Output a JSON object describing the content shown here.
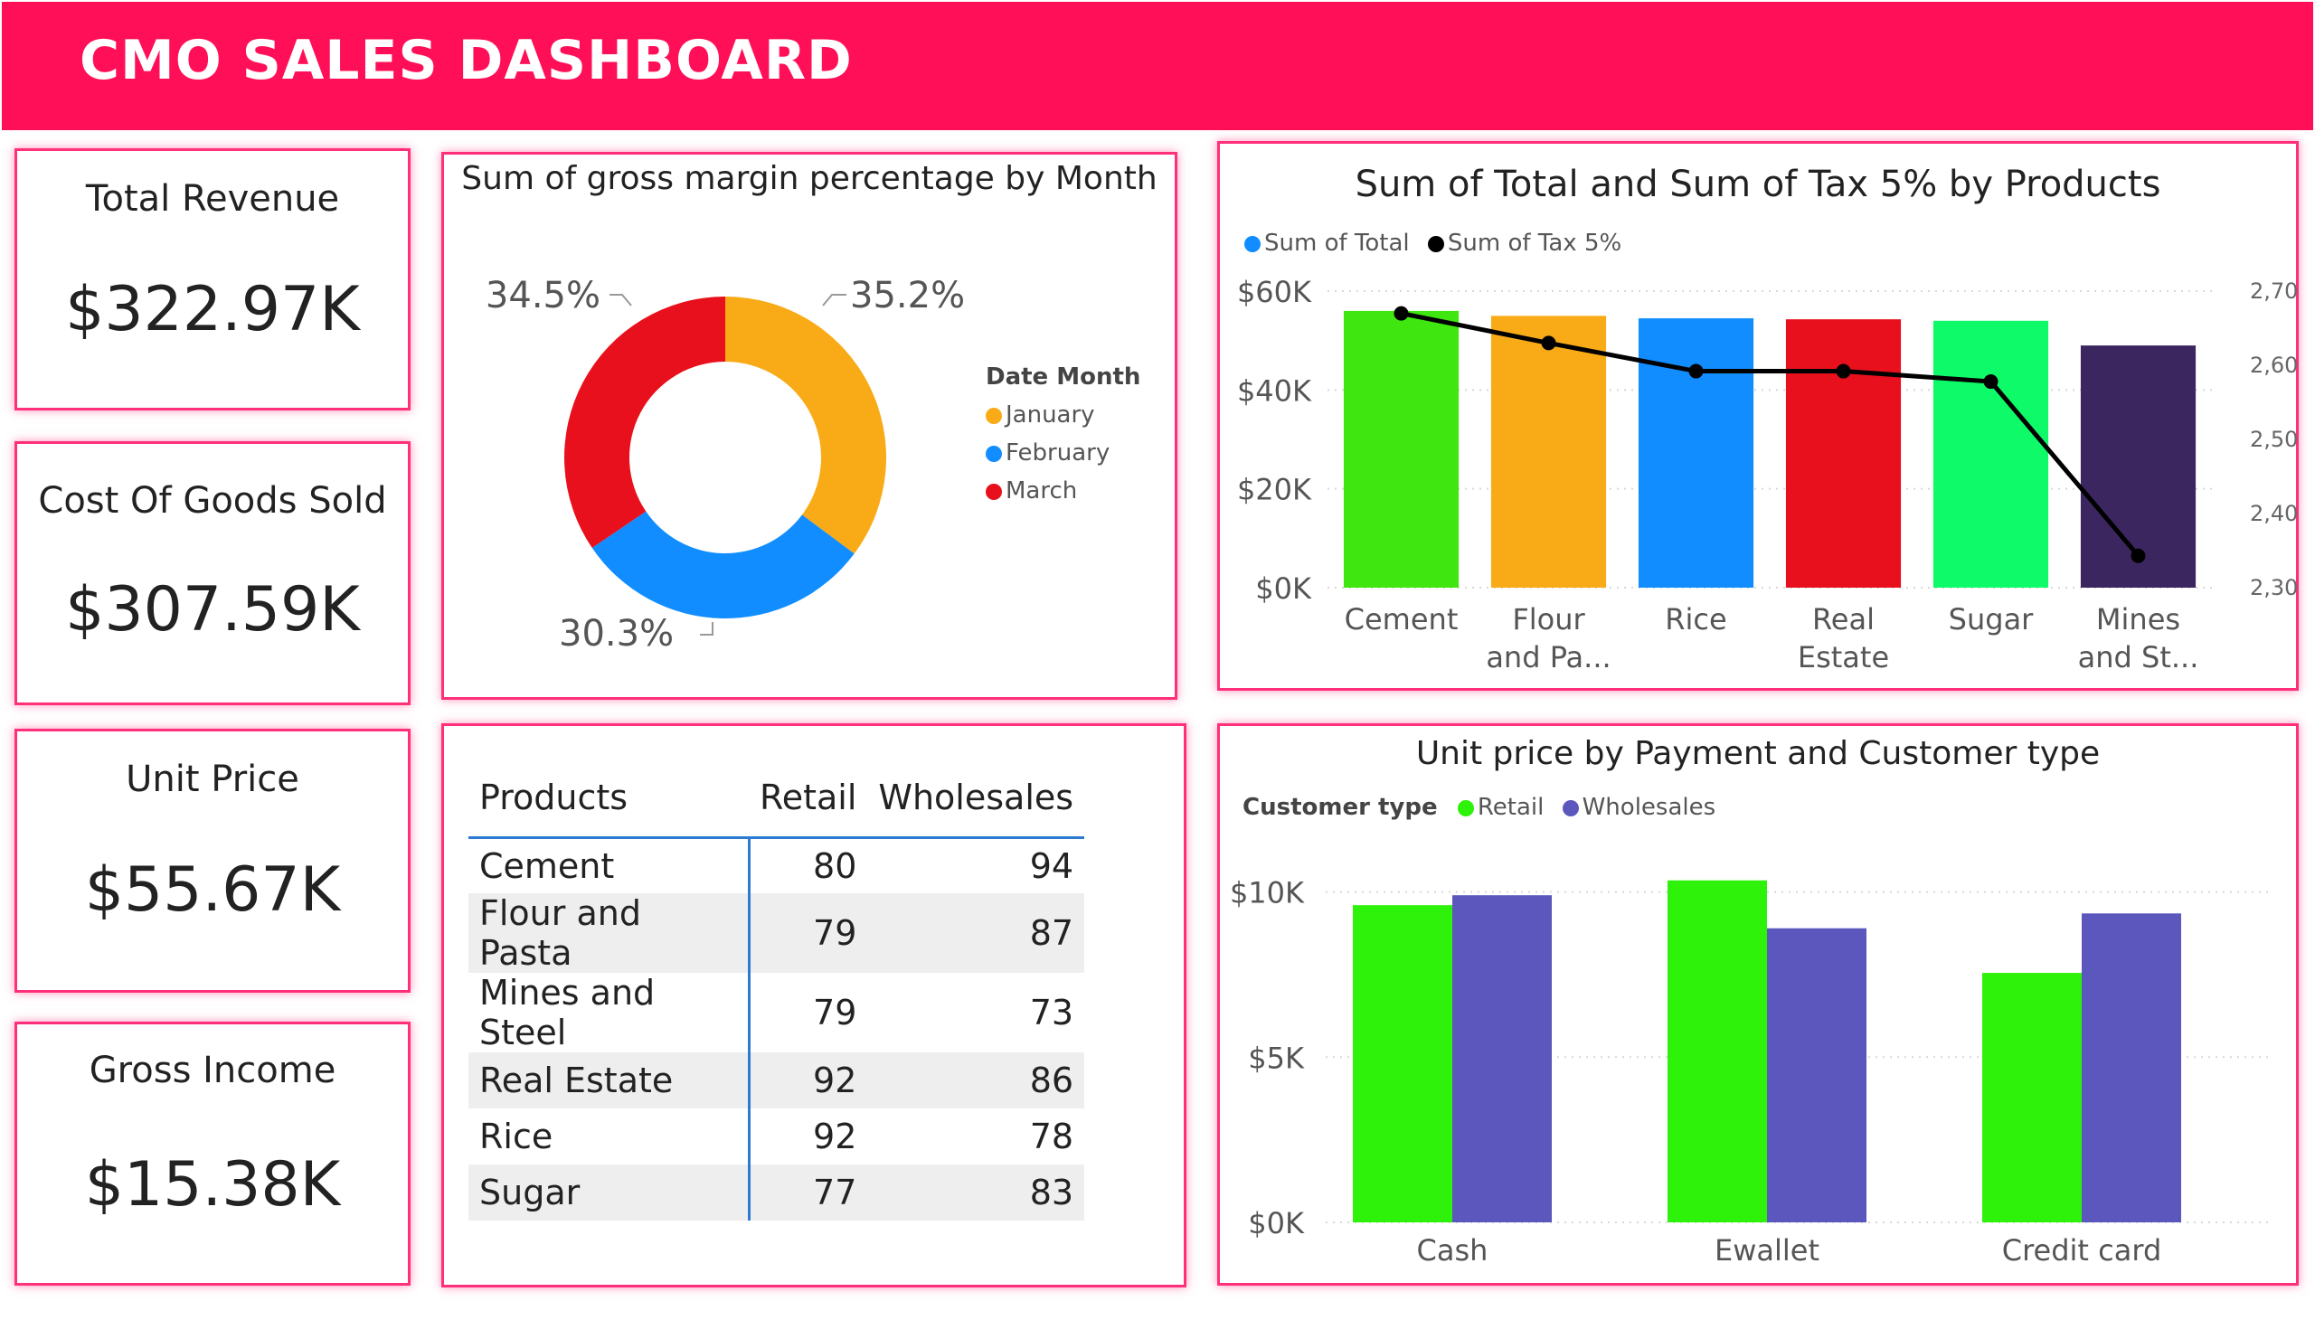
{
  "header": {
    "title": "CMO SALES DASHBOARD"
  },
  "kpis": [
    {
      "label": "Total Revenue",
      "value": "$322.97K"
    },
    {
      "label": "Cost Of Goods Sold",
      "value": "$307.59K"
    },
    {
      "label": "Unit Price",
      "value": "$55.67K"
    },
    {
      "label": "Gross Income",
      "value": "$15.38K"
    }
  ],
  "donut": {
    "title": "Sum of gross margin percentage by Month",
    "legend_title": "Date Month",
    "labels": [
      "35.2%",
      "30.3%",
      "34.5%"
    ]
  },
  "table": {
    "headers": [
      "Products",
      "Retail",
      "Wholesales"
    ],
    "rows": [
      [
        "Cement",
        "80",
        "94"
      ],
      [
        "Flour and Pasta",
        "79",
        "87"
      ],
      [
        "Mines and Steel",
        "79",
        "73"
      ],
      [
        "Real Estate",
        "92",
        "86"
      ],
      [
        "Rice",
        "92",
        "78"
      ],
      [
        "Sugar",
        "77",
        "83"
      ]
    ]
  },
  "combo": {
    "title": "Sum of Total and Sum of Tax 5% by Products"
  },
  "clustered": {
    "title": "Unit price by Payment and Customer type",
    "legend_title": "Customer type"
  },
  "chart_data": [
    {
      "type": "pie",
      "title": "Sum of gross margin percentage by Month",
      "legend_title": "Date Month",
      "legend_position": "right",
      "categories": [
        "January",
        "February",
        "March"
      ],
      "values": [
        35.2,
        30.3,
        34.5
      ],
      "colors": [
        "#f9ab17",
        "#118dff",
        "#e8101c"
      ]
    },
    {
      "type": "bar",
      "title": "Sum of Total and Sum of Tax 5% by Products",
      "categories": [
        "Cement",
        "Flour and Pa...",
        "Rice",
        "Real Estate",
        "Sugar",
        "Mines and St..."
      ],
      "series": [
        {
          "name": "Sum of Total",
          "type": "bar",
          "axis": "left",
          "values": [
            56000,
            55000,
            54500,
            54300,
            54000,
            49000
          ]
        },
        {
          "name": "Sum of Tax 5%",
          "type": "line",
          "axis": "right",
          "values": [
            2670,
            2630,
            2592,
            2592,
            2578,
            2343
          ]
        }
      ],
      "bar_colors": [
        "#3fe610",
        "#f9ab17",
        "#118dff",
        "#e8101c",
        "#0efa68",
        "#3b2660"
      ],
      "series_colors": [
        "#118dff",
        "#000000"
      ],
      "ylim": [
        0,
        60000
      ],
      "yticks": [
        "$0K",
        "$20K",
        "$40K",
        "$60K"
      ],
      "y2lim": [
        2300,
        2700
      ],
      "y2ticks": [
        "2,300",
        "2,400",
        "2,500",
        "2,600",
        "2,700"
      ],
      "legend_position": "top-left",
      "grid": true
    },
    {
      "type": "bar",
      "title": "Unit price by Payment and Customer type",
      "legend_title": "Customer type",
      "categories": [
        "Cash",
        "Ewallet",
        "Credit card"
      ],
      "series": [
        {
          "name": "Retail",
          "values": [
            9600,
            10350,
            7550
          ]
        },
        {
          "name": "Wholesales",
          "values": [
            9900,
            8900,
            9350
          ]
        }
      ],
      "series_colors": [
        "#2ff20a",
        "#5b57bd"
      ],
      "ylim": [
        0,
        11000
      ],
      "yticks": [
        "$0K",
        "$5K",
        "$10K"
      ],
      "legend_position": "top-left",
      "grid": true
    }
  ]
}
